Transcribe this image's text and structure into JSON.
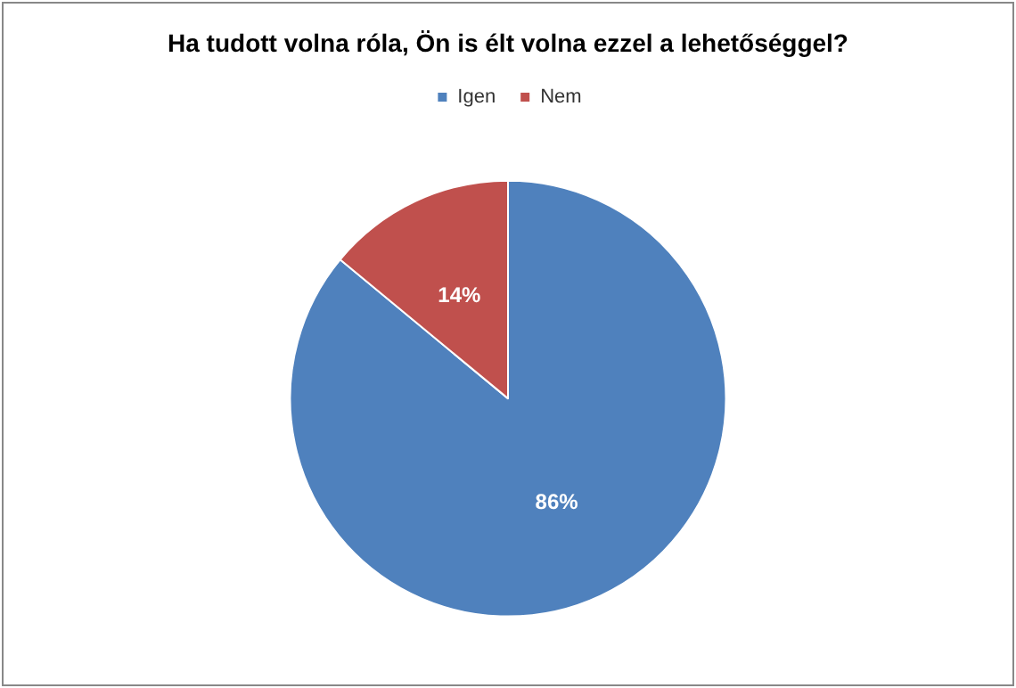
{
  "chart_data": {
    "type": "pie",
    "title": "Ha tudott volna róla, Ön is élt volna ezzel a lehetőséggel?",
    "categories": [
      "Igen",
      "Nem"
    ],
    "values": [
      86,
      14
    ],
    "colors": [
      "#4f81bd",
      "#c0504d"
    ],
    "value_labels": [
      "86%",
      "14%"
    ],
    "legend": "top"
  }
}
